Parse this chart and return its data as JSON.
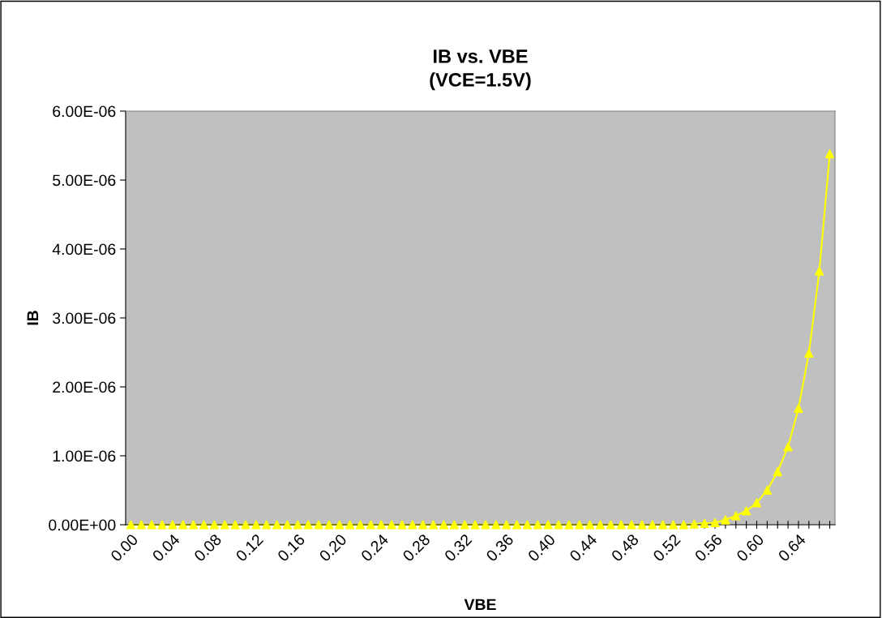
{
  "chart_data": {
    "type": "line",
    "title": "IB vs. VBE\n(VCE=1.5V)",
    "xlabel": "VBE",
    "ylabel": "IB",
    "categories": [
      "0.00",
      null,
      null,
      null,
      "0.04",
      null,
      null,
      null,
      "0.08",
      null,
      null,
      null,
      "0.12",
      null,
      null,
      null,
      "0.16",
      null,
      null,
      null,
      "0.20",
      null,
      null,
      null,
      "0.24",
      null,
      null,
      null,
      "0.28",
      null,
      null,
      null,
      "0.32",
      null,
      null,
      null,
      "0.36",
      null,
      null,
      null,
      "0.40",
      null,
      null,
      null,
      "0.44",
      null,
      null,
      null,
      "0.48",
      null,
      null,
      null,
      "0.52",
      null,
      null,
      null,
      "0.56",
      null,
      null,
      null,
      "0.60",
      null,
      null,
      null,
      "0.64",
      null,
      null,
      null
    ],
    "series": [
      {
        "color": "#ffff00",
        "values": [
          0,
          0,
          0,
          0,
          0,
          0,
          0,
          0,
          0,
          0,
          0,
          0,
          0,
          0,
          0,
          0,
          0,
          0,
          0,
          0,
          0,
          0,
          0,
          0,
          0,
          0,
          0,
          0,
          0,
          0,
          0,
          0,
          0,
          0,
          0,
          0,
          0,
          0,
          0,
          0,
          0,
          0,
          0,
          0,
          0,
          0,
          0,
          0,
          0,
          0,
          0,
          0,
          0,
          0,
          1e-08,
          2e-08,
          3e-08,
          7e-08,
          1.3e-07,
          2e-07,
          3.2e-07,
          5e-07,
          7.7e-07,
          1.13e-06,
          1.69e-06,
          2.49e-06,
          3.68e-06,
          5.38e-06
        ]
      }
    ],
    "ylim": [
      0,
      6e-06
    ],
    "yticks": [
      {
        "value": 0,
        "label": "0.00E+00"
      },
      {
        "value": 1e-06,
        "label": "1.00E-06"
      },
      {
        "value": 2e-06,
        "label": "2.00E-06"
      },
      {
        "value": 3e-06,
        "label": "3.00E-06"
      },
      {
        "value": 4e-06,
        "label": "4.00E-06"
      },
      {
        "value": 5e-06,
        "label": "5.00E-06"
      },
      {
        "value": 6e-06,
        "label": "6.00E-06"
      }
    ],
    "marker": "triangle",
    "line_style": "solid",
    "grid": false,
    "legend": false
  }
}
